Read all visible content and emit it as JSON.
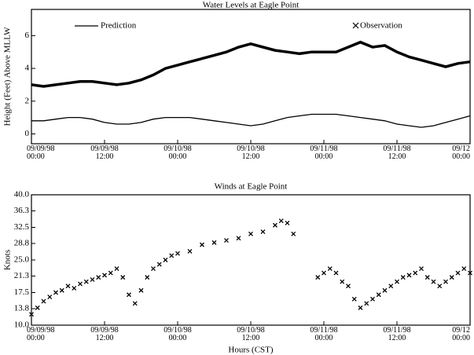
{
  "chart_data": [
    {
      "type": "line",
      "title": "Water Levels at Eagle Point",
      "y_label": "Height (Feet) Above MLLW",
      "x": [
        0,
        2,
        4,
        6,
        8,
        10,
        12,
        14,
        16,
        18,
        20,
        22,
        24,
        26,
        28,
        30,
        32,
        34,
        36,
        38,
        40,
        42,
        44,
        46,
        48,
        50,
        52,
        54,
        56,
        58,
        60,
        62,
        64,
        66,
        68,
        70,
        72
      ],
      "series": [
        {
          "name": "Prediction",
          "color": "#000000",
          "values": [
            0.8,
            0.8,
            0.9,
            1.0,
            1.0,
            0.9,
            0.7,
            0.6,
            0.6,
            0.7,
            0.9,
            1.0,
            1.0,
            1.0,
            0.9,
            0.8,
            0.7,
            0.6,
            0.5,
            0.6,
            0.8,
            1.0,
            1.1,
            1.2,
            1.2,
            1.2,
            1.1,
            1.0,
            0.9,
            0.8,
            0.6,
            0.5,
            0.4,
            0.5,
            0.7,
            0.9,
            1.1
          ]
        },
        {
          "name": "Observation",
          "color": "#000000",
          "values": [
            3.0,
            2.9,
            3.0,
            3.1,
            3.2,
            3.2,
            3.1,
            3.0,
            3.1,
            3.3,
            3.6,
            4.0,
            4.2,
            4.4,
            4.6,
            4.8,
            5.0,
            5.3,
            5.5,
            5.3,
            5.1,
            5.0,
            4.9,
            5.0,
            5.0,
            5.0,
            5.3,
            5.6,
            5.3,
            5.4,
            5.0,
            4.7,
            4.5,
            4.3,
            4.1,
            4.3,
            4.4
          ]
        }
      ],
      "xlim": [
        0,
        72
      ],
      "xticks": [
        {
          "value": 0,
          "label": "09/09/98\n00:00"
        },
        {
          "value": 12,
          "label": "09/09/98\n12:00"
        },
        {
          "value": 24,
          "label": "09/10/98\n00:00"
        },
        {
          "value": 36,
          "label": "09/10/98\n12:00"
        },
        {
          "value": 48,
          "label": "09/11/98\n00:00"
        },
        {
          "value": 60,
          "label": "09/11/98\n12:00"
        },
        {
          "value": 72,
          "label": "09/12\n00:00"
        }
      ],
      "ylim": [
        -0.6,
        7.6
      ],
      "yticks": [
        0,
        2,
        4,
        6
      ],
      "grid": false
    },
    {
      "type": "scatter",
      "title": "Winds at Eagle Point",
      "y_label": "Knots",
      "x_label": "Hours (CST)",
      "color": "#000000",
      "x": [
        0,
        1,
        2,
        3,
        4,
        5,
        6,
        7,
        8,
        9,
        10,
        11,
        12,
        13,
        14,
        15,
        16,
        17,
        18,
        19,
        20,
        21,
        22,
        23,
        24,
        26,
        28,
        30,
        32,
        34,
        36,
        38,
        40,
        41,
        42,
        43,
        47,
        48,
        49,
        50,
        51,
        52,
        53,
        54,
        55,
        56,
        57,
        58,
        59,
        60,
        61,
        62,
        63,
        64,
        65,
        66,
        67,
        68,
        69,
        70,
        71,
        72
      ],
      "values": [
        12.5,
        14,
        15.5,
        16.5,
        17.5,
        18,
        19,
        18.5,
        19.5,
        20,
        20.5,
        21,
        21.5,
        22,
        23,
        21,
        17,
        15,
        18,
        21,
        23,
        24,
        25,
        26,
        26.5,
        27,
        28.5,
        29,
        29.5,
        30,
        31,
        31.5,
        33,
        34,
        33.5,
        31,
        21,
        22,
        23,
        22,
        20,
        19,
        16,
        14,
        15,
        16,
        17,
        18,
        19,
        20,
        21,
        21.5,
        22,
        23,
        21,
        20,
        19,
        20,
        21,
        22,
        23,
        22
      ],
      "xlim": [
        0,
        72
      ],
      "xticks": [
        {
          "value": 0,
          "label": "09/09/98\n00:00"
        },
        {
          "value": 12,
          "label": "09/09/98\n12:00"
        },
        {
          "value": 24,
          "label": "09/10/98\n00:00"
        },
        {
          "value": 36,
          "label": "09/10/98\n12:00"
        },
        {
          "value": 48,
          "label": "09/11/98\n00:00"
        },
        {
          "value": 60,
          "label": "09/11/98\n12:00"
        },
        {
          "value": 72,
          "label": "09/12\n00:00"
        }
      ],
      "ylim": [
        10,
        40
      ],
      "yticks": [
        {
          "value": 10,
          "label": "10.0"
        },
        13.8,
        17.5,
        21.3,
        {
          "value": 25,
          "label": "25.0"
        },
        28.8,
        32.5,
        36.3,
        {
          "value": 40,
          "label": "40.0"
        }
      ],
      "grid": false
    }
  ]
}
